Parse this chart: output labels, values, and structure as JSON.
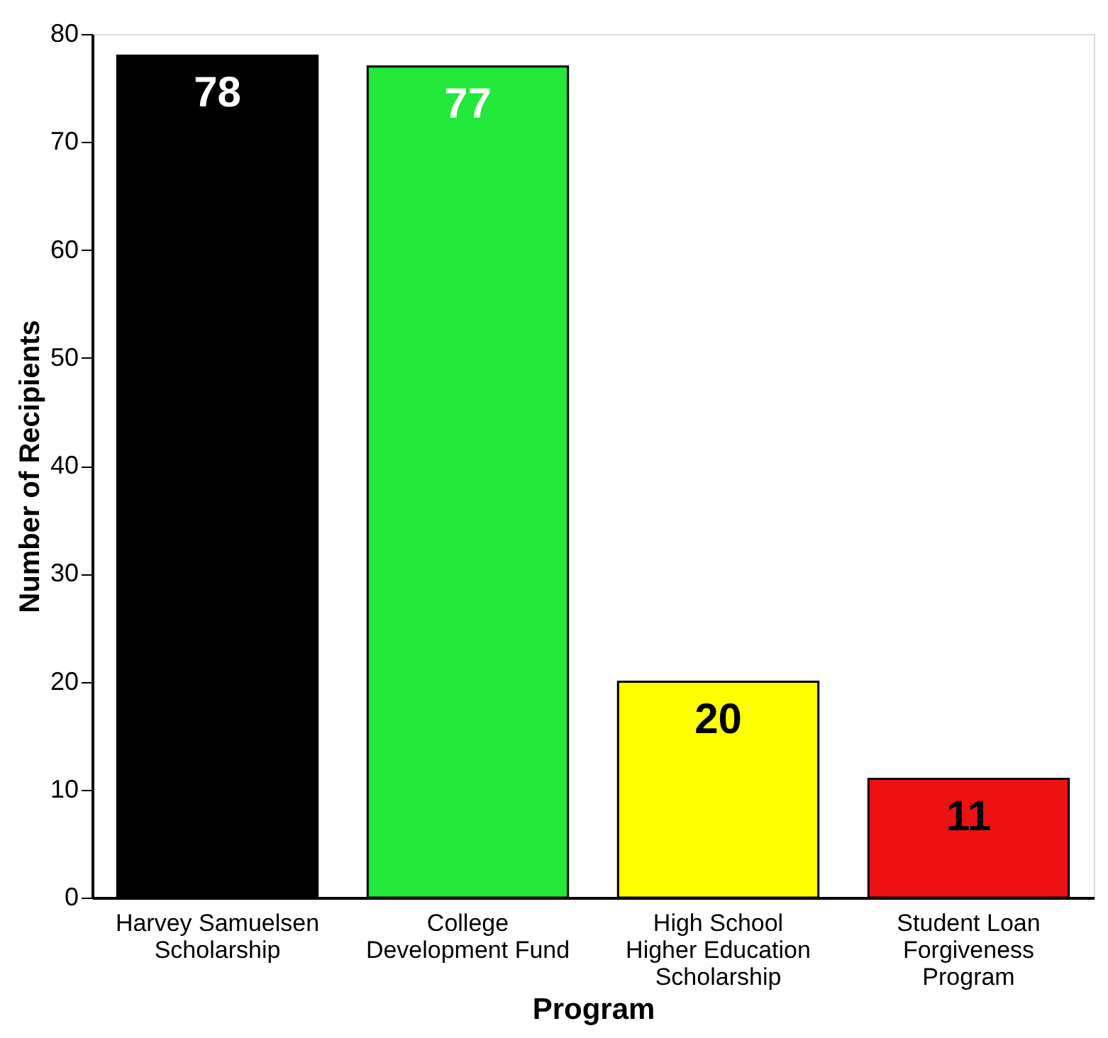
{
  "chart_data": {
    "type": "bar",
    "categories": [
      "Harvey Samuelsen Scholarship",
      "College Development Fund",
      "High School Higher Education Scholarship",
      "Student Loan Forgiveness Program"
    ],
    "values": [
      78,
      77,
      20,
      11
    ],
    "colors": [
      "#000000",
      "#22e83a",
      "#ffff00",
      "#ee1111"
    ],
    "xlabel": "Program",
    "ylabel": "Number of Recipients",
    "ylim": [
      0,
      80
    ],
    "yticks": [
      0,
      10,
      20,
      30,
      40,
      50,
      60,
      70,
      80
    ],
    "data_labels": true,
    "grid": false
  }
}
